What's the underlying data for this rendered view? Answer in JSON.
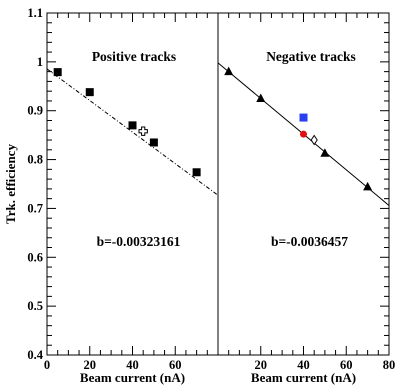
{
  "ylabel": "Trk. efficiency",
  "chart_data": [
    {
      "type": "scatter",
      "title": "Positive tracks",
      "xlabel": "Beam current (nA)",
      "ylabel": "Trk. efficiency",
      "xlim": [
        0,
        80
      ],
      "ylim": [
        0.4,
        1.1
      ],
      "x_ticks": [
        "0",
        "20",
        "40",
        "60"
      ],
      "y_ticks": [
        "0.4",
        "0.5",
        "0.6",
        "0.7",
        "0.8",
        "0.9",
        "1",
        "1.1"
      ],
      "annotation": "b=-0.00323161",
      "fit_line": {
        "style": "dash-dot",
        "x": [
          0,
          80
        ],
        "y": [
          0.9855,
          0.727
        ]
      },
      "series": [
        {
          "marker": "filled-square",
          "color": "#000000",
          "x": [
            5,
            20,
            40,
            50,
            70
          ],
          "y": [
            0.979,
            0.938,
            0.87,
            0.835,
            0.774
          ]
        },
        {
          "marker": "open-cross",
          "color": "#000000",
          "x": [
            45
          ],
          "y": [
            0.858
          ]
        }
      ]
    },
    {
      "type": "scatter",
      "title": "Negative tracks",
      "xlabel": "Beam current (nA)",
      "ylabel": "",
      "xlim": [
        0,
        80
      ],
      "ylim": [
        0.4,
        1.1
      ],
      "x_ticks": [
        "20",
        "40",
        "60",
        "80"
      ],
      "annotation": "b=-0.0036457",
      "fit_line": {
        "style": "solid",
        "x": [
          0,
          80
        ],
        "y": [
          0.998,
          0.706
        ]
      },
      "series": [
        {
          "marker": "filled-triangle",
          "color": "#000000",
          "x": [
            5,
            20,
            50,
            70
          ],
          "y": [
            0.98,
            0.925,
            0.813,
            0.744
          ]
        },
        {
          "marker": "filled-square",
          "color": "#2a3ff0",
          "x": [
            40
          ],
          "y": [
            0.886
          ]
        },
        {
          "marker": "filled-circle",
          "color": "#e01010",
          "x": [
            40
          ],
          "y": [
            0.852
          ]
        },
        {
          "marker": "open-diamond",
          "color": "#000000",
          "x": [
            45
          ],
          "y": [
            0.84
          ]
        }
      ]
    }
  ]
}
